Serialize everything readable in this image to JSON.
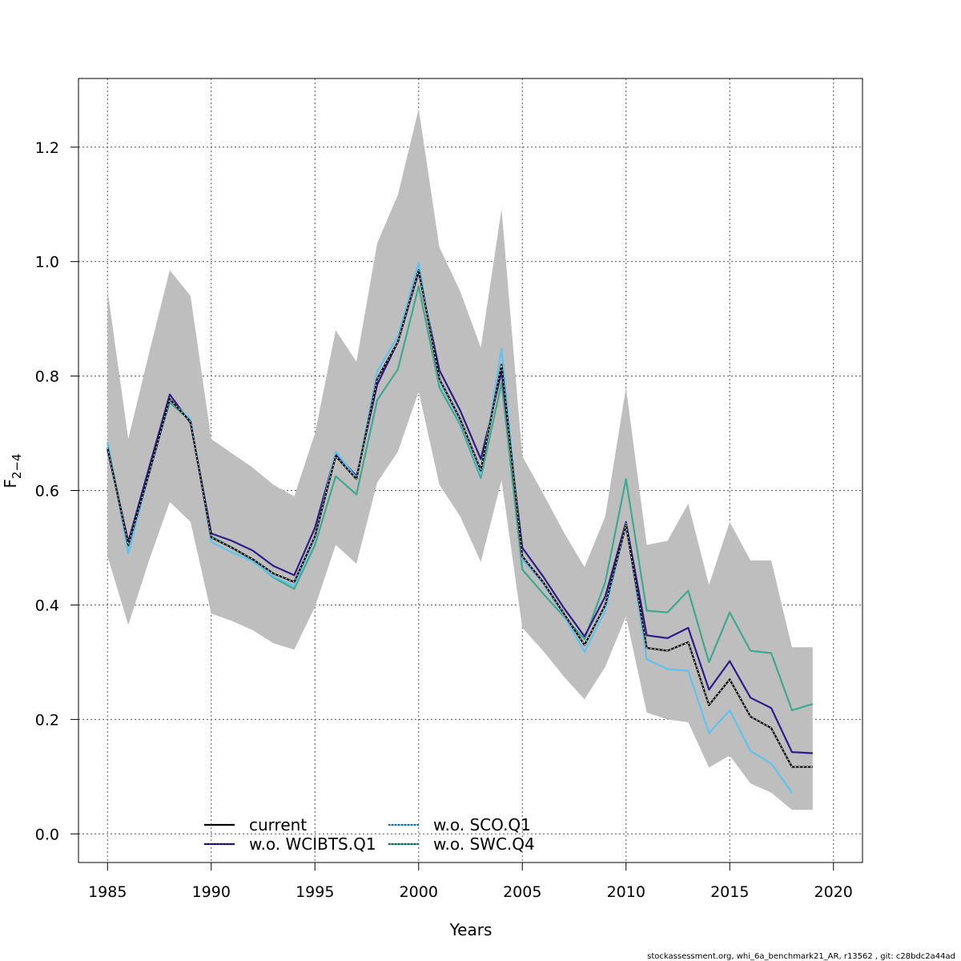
{
  "chart_data": {
    "type": "line",
    "xlabel": "Years",
    "ylabel": {
      "main": "F",
      "subscript": "2−4"
    },
    "xlim": [
      1983.6,
      2021.4
    ],
    "ylim": [
      -0.05,
      1.32
    ],
    "x_ticks": [
      "1985",
      "1990",
      "1995",
      "2000",
      "2005",
      "2010",
      "2015",
      "2020"
    ],
    "y_ticks": [
      "0.0",
      "0.2",
      "0.4",
      "0.6",
      "0.8",
      "1.0",
      "1.2"
    ],
    "grid": true,
    "legend_position": "bottom-left",
    "band_color": "#bebebe",
    "x": [
      1985,
      1986,
      1987,
      1988,
      1989,
      1990,
      1991,
      1992,
      1993,
      1994,
      1995,
      1996,
      1997,
      1998,
      1999,
      2000,
      2001,
      2002,
      2003,
      2004,
      2005,
      2006,
      2007,
      2008,
      2009,
      2010,
      2011,
      2012,
      2013,
      2014,
      2015,
      2016,
      2017,
      2018,
      2019
    ],
    "band": {
      "upper": [
        0.95,
        0.69,
        0.84,
        0.985,
        0.94,
        0.69,
        0.665,
        0.64,
        0.61,
        0.59,
        0.7,
        0.88,
        0.825,
        1.032,
        1.117,
        1.267,
        1.025,
        0.948,
        0.85,
        1.092,
        0.66,
        0.595,
        0.527,
        0.466,
        0.555,
        0.78,
        0.505,
        0.512,
        0.577,
        0.435,
        0.545,
        0.478,
        0.478,
        0.326,
        0.326
      ],
      "lower": [
        0.485,
        0.365,
        0.478,
        0.58,
        0.545,
        0.385,
        0.372,
        0.356,
        0.333,
        0.322,
        0.397,
        0.505,
        0.472,
        0.614,
        0.668,
        0.773,
        0.61,
        0.555,
        0.475,
        0.618,
        0.36,
        0.32,
        0.275,
        0.235,
        0.292,
        0.38,
        0.212,
        0.2,
        0.195,
        0.116,
        0.137,
        0.088,
        0.072,
        0.042,
        0.042
      ]
    },
    "series": [
      {
        "name": "current",
        "color": "#000000",
        "values": [
          0.675,
          0.505,
          0.63,
          0.76,
          0.72,
          0.518,
          0.5,
          0.48,
          0.455,
          0.44,
          0.52,
          0.66,
          0.62,
          0.795,
          0.86,
          0.985,
          0.795,
          0.725,
          0.635,
          0.82,
          0.485,
          0.44,
          0.385,
          0.33,
          0.4,
          0.54,
          0.325,
          0.32,
          0.335,
          0.225,
          0.27,
          0.205,
          0.185,
          0.117,
          0.117
        ]
      },
      {
        "name": "w.o. WCIBTS.Q1",
        "color": "#2f1b8a",
        "values": [
          0.672,
          0.51,
          0.64,
          0.768,
          0.718,
          0.525,
          0.512,
          0.495,
          0.468,
          0.452,
          0.535,
          0.665,
          0.625,
          0.785,
          0.86,
          0.982,
          0.81,
          0.74,
          0.655,
          0.808,
          0.5,
          0.45,
          0.395,
          0.345,
          0.415,
          0.545,
          0.347,
          0.342,
          0.36,
          0.252,
          0.302,
          0.238,
          0.22,
          0.143,
          0.141
        ]
      },
      {
        "name": "w.o. SCO.Q1",
        "color": "#5fc3ee",
        "values": [
          0.685,
          0.49,
          0.63,
          0.758,
          0.725,
          0.51,
          0.492,
          0.476,
          0.45,
          0.433,
          0.518,
          0.668,
          0.622,
          0.808,
          0.87,
          0.998,
          0.79,
          0.722,
          0.628,
          0.848,
          0.48,
          0.438,
          0.382,
          0.318,
          0.39,
          0.542,
          0.305,
          0.288,
          0.285,
          0.176,
          0.216,
          0.145,
          0.123,
          0.072,
          null
        ]
      },
      {
        "name": "w.o. SWC.Q4",
        "color": "#3fa98f",
        "values": [
          0.683,
          0.502,
          0.638,
          0.754,
          0.722,
          0.52,
          0.5,
          0.478,
          0.448,
          0.428,
          0.505,
          0.625,
          0.593,
          0.758,
          0.812,
          0.957,
          0.78,
          0.715,
          0.622,
          0.788,
          0.462,
          0.42,
          0.38,
          0.34,
          0.44,
          0.62,
          0.39,
          0.387,
          0.425,
          0.3,
          0.387,
          0.32,
          0.316,
          0.216,
          0.227
        ]
      }
    ],
    "legend": [
      {
        "label": "current",
        "color": "#000000",
        "dotted": false
      },
      {
        "label": "w.o. WCIBTS.Q1",
        "color": "#2f1b8a",
        "dotted": true
      },
      {
        "label": "w.o. SCO.Q1",
        "color": "#5fc3ee",
        "dotted": true
      },
      {
        "label": "w.o. SWC.Q4",
        "color": "#3fa98f",
        "dotted": true
      }
    ]
  },
  "footer": "stockassessment.org, whi_6a_benchmark21_AR, r13562 , git: c28bdc2a44ad"
}
